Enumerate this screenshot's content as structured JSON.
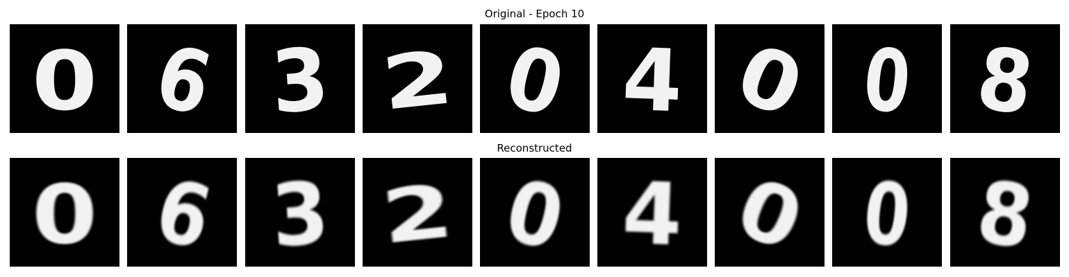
{
  "figure": {
    "original_title": "Original - Epoch 10",
    "reconstructed_title": "Reconstructed"
  },
  "originals": [
    {
      "digit": "0"
    },
    {
      "digit": "6"
    },
    {
      "digit": "3"
    },
    {
      "digit": "2"
    },
    {
      "digit": "0"
    },
    {
      "digit": "4"
    },
    {
      "digit": "0"
    },
    {
      "digit": "0"
    },
    {
      "digit": "8"
    }
  ],
  "reconstructions": [
    {
      "digit": "0"
    },
    {
      "digit": "6"
    },
    {
      "digit": "3"
    },
    {
      "digit": "2"
    },
    {
      "digit": "0"
    },
    {
      "digit": "4"
    },
    {
      "digit": "0"
    },
    {
      "digit": "0"
    },
    {
      "digit": "8"
    }
  ],
  "colors": {
    "background": "#000000",
    "stroke": "#f2f2f2"
  }
}
